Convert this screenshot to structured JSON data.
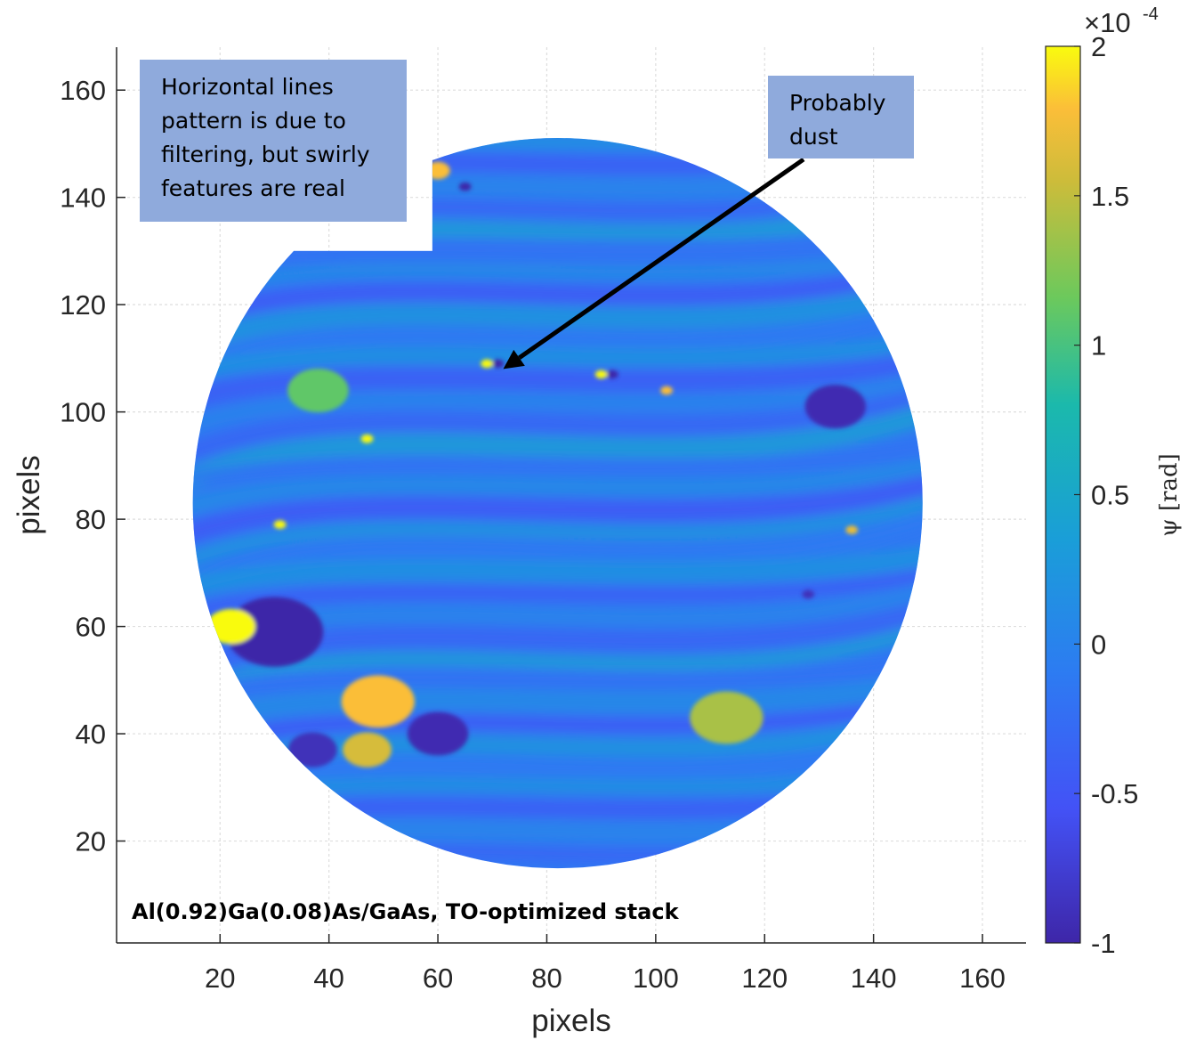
{
  "chart_data": {
    "type": "heatmap",
    "title": "",
    "xlabel": "pixels",
    "ylabel": "pixels",
    "xlim": [
      1,
      168
    ],
    "ylim": [
      1,
      168
    ],
    "x_ticks": [
      20,
      40,
      60,
      80,
      100,
      120,
      140,
      160
    ],
    "y_ticks": [
      20,
      40,
      60,
      80,
      100,
      120,
      140,
      160
    ],
    "grid": "on",
    "colormap": "parula",
    "colorbar": {
      "label": "ψ [rad]",
      "scale_label": "×10",
      "scale_exponent": "-4",
      "range": [
        -1,
        2
      ],
      "ticks": [
        -1,
        -0.5,
        0,
        0.5,
        1,
        1.5,
        2
      ],
      "tick_labels": [
        "-1",
        "-0.5",
        "0",
        "0.5",
        "1",
        "1.5",
        "2"
      ]
    },
    "mask": {
      "shape": "circle with rectangular notch at upper-left",
      "center": [
        82,
        83
      ],
      "radius": 67,
      "notch_x_max": 59,
      "notch_y_min": 130
    },
    "features": [
      {
        "x": 30,
        "y": 59,
        "value": -1.0,
        "size": 8
      },
      {
        "x": 22,
        "y": 60,
        "value": 2.0,
        "size": 4
      },
      {
        "x": 49,
        "y": 46,
        "value": 1.8,
        "size": 6
      },
      {
        "x": 47,
        "y": 37,
        "value": 1.6,
        "size": 4
      },
      {
        "x": 60,
        "y": 40,
        "value": -0.95,
        "size": 5
      },
      {
        "x": 37,
        "y": 37,
        "value": -0.9,
        "size": 4
      },
      {
        "x": 113,
        "y": 43,
        "value": 1.4,
        "size": 6
      },
      {
        "x": 38,
        "y": 104,
        "value": 1.1,
        "size": 5
      },
      {
        "x": 71,
        "y": 109,
        "value": -1.0,
        "size": 1
      },
      {
        "x": 69,
        "y": 109,
        "value": 2.0,
        "size": 1
      },
      {
        "x": 92,
        "y": 107,
        "value": -1.0,
        "size": 1
      },
      {
        "x": 90,
        "y": 107,
        "value": 2.0,
        "size": 1
      },
      {
        "x": 31,
        "y": 79,
        "value": 2.0,
        "size": 1
      },
      {
        "x": 136,
        "y": 78,
        "value": 1.7,
        "size": 1
      },
      {
        "x": 133,
        "y": 101,
        "value": -0.95,
        "size": 5
      },
      {
        "x": 60,
        "y": 145,
        "value": 1.8,
        "size": 2
      },
      {
        "x": 65,
        "y": 142,
        "value": -1.0,
        "size": 1
      },
      {
        "x": 47,
        "y": 95,
        "value": 2.0,
        "size": 1
      },
      {
        "x": 102,
        "y": 104,
        "value": 1.8,
        "size": 1
      },
      {
        "x": 128,
        "y": 66,
        "value": -0.9,
        "size": 1
      }
    ],
    "annotations": [
      {
        "text": "Horizontal lines pattern is due to filtering, but swirly features are real"
      },
      {
        "text": "Probably dust",
        "arrow_to": [
          72,
          108
        ]
      },
      {
        "text": "Al(0.92)Ga(0.08)As/GaAs,  TO-optimized stack"
      }
    ]
  }
}
